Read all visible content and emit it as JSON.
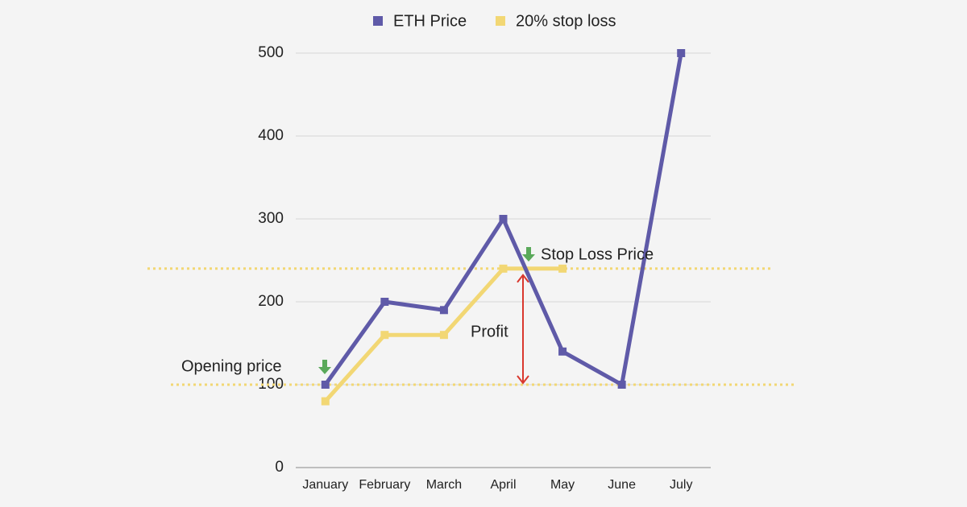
{
  "chart_data": {
    "type": "line",
    "categories": [
      "January",
      "February",
      "March",
      "April",
      "May",
      "June",
      "July"
    ],
    "series": [
      {
        "name": "ETH Price",
        "color": "#5f5aa8",
        "values": [
          100,
          200,
          190,
          300,
          140,
          100,
          500
        ]
      },
      {
        "name": "20% stop loss",
        "color": "#f2d774",
        "values": [
          80,
          160,
          160,
          240,
          240,
          null,
          null
        ]
      }
    ],
    "ylim": [
      0,
      500
    ],
    "yticks": [
      0,
      100,
      200,
      300,
      400,
      500
    ],
    "grid": true,
    "legend": "top",
    "annotations": [
      {
        "text": "Opening price",
        "value": 100,
        "color": "#5aa95a"
      },
      {
        "text": "Stop Loss Price",
        "value": 240,
        "color": "#5aa95a"
      },
      {
        "text": "Profit",
        "color": "#d9382e"
      }
    ]
  }
}
